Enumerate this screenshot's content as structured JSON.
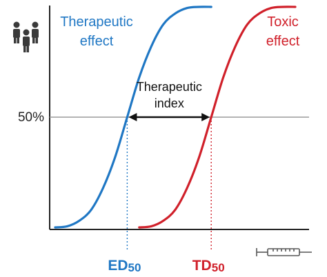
{
  "chart_data": {
    "type": "line",
    "x_range": [
      0,
      100
    ],
    "y_range": [
      0,
      100
    ],
    "reference_line": {
      "y": 50,
      "label": "50%"
    },
    "series": [
      {
        "name": "Therapeutic effect",
        "label_lines": [
          "Therapeutic",
          "effect"
        ],
        "color": "#1f77c4",
        "x": [
          0,
          5,
          10,
          15,
          20,
          25,
          30,
          35,
          40,
          45,
          50,
          55,
          60,
          65
        ],
        "y": [
          0,
          0.5,
          3,
          8,
          18,
          32,
          50,
          68,
          82,
          92,
          97,
          99.5,
          100,
          100
        ]
      },
      {
        "name": "Toxic effect",
        "label_lines": [
          "Toxic",
          "effect"
        ],
        "color": "#d0202a",
        "x": [
          35,
          40,
          45,
          50,
          55,
          60,
          65,
          70,
          75,
          80,
          85,
          90,
          95,
          100
        ],
        "y": [
          0,
          0.5,
          3,
          8,
          18,
          32,
          50,
          68,
          82,
          92,
          97,
          99.5,
          100,
          100
        ]
      }
    ],
    "markers": [
      {
        "name": "ED50",
        "prefix": "ED",
        "subscript": "50",
        "x": 30,
        "color": "#1f77c4"
      },
      {
        "name": "TD50",
        "prefix": "TD",
        "subscript": "50",
        "x": 65,
        "color": "#d0202a"
      }
    ],
    "annotation": {
      "lines": [
        "Therapeutic",
        "index"
      ],
      "from_x": 30,
      "to_x": 65,
      "y": 50
    },
    "icons": [
      "people-icon",
      "syringe-icon"
    ]
  }
}
